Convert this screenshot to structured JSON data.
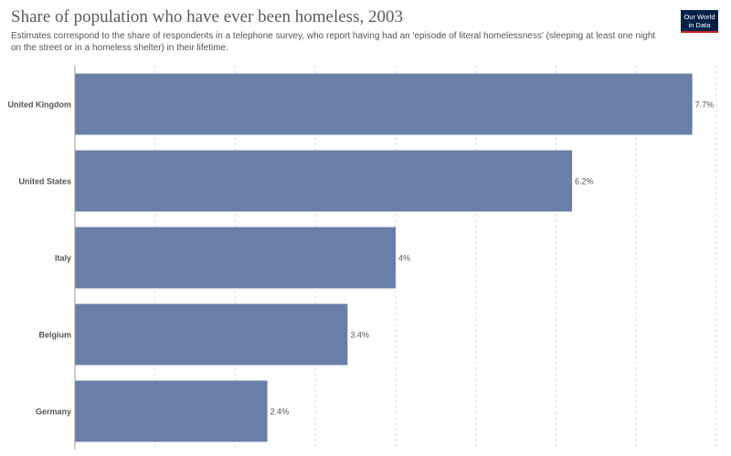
{
  "header": {
    "title": "Share of population who have ever been homeless, 2003",
    "subtitle": "Estimates correspond to the share of respondents in a telephone survey, who report having had an 'episode of literal homelessness' (sleeping at least one night on the street or in a homeless shelter) in their lifetime."
  },
  "logo": {
    "line1": "Our World",
    "line2": "in Data"
  },
  "colors": {
    "bar": "#6a7fa8",
    "grid": "#dddddd",
    "axis": "#999999"
  },
  "chart_data": {
    "type": "bar",
    "orientation": "horizontal",
    "title": "Share of population who have ever been homeless, 2003",
    "categories": [
      "United Kingdom",
      "United States",
      "Italy",
      "Belgium",
      "Germany"
    ],
    "values": [
      7.7,
      6.2,
      4,
      3.4,
      2.4
    ],
    "value_labels": [
      "7.7%",
      "6.2%",
      "4%",
      "3.4%",
      "2.4%"
    ],
    "xlim": [
      0,
      8
    ],
    "grid": true,
    "legend": "none"
  }
}
